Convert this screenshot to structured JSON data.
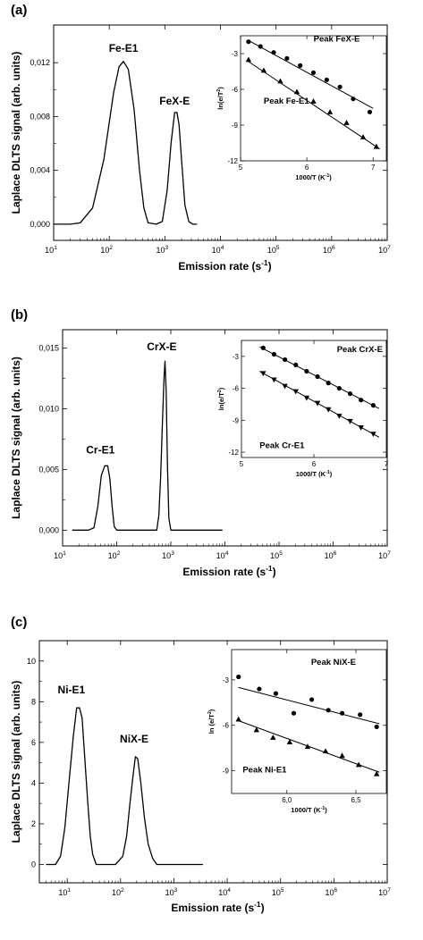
{
  "chart_data": [
    {
      "type": "line",
      "panel_label": "(a)",
      "xlabel": "Emission rate (s⁻¹)",
      "ylabel": "Laplace DLTS signal (arb. units)",
      "x_scale": "log",
      "xlim": [
        10,
        10000000
      ],
      "ylim": [
        -0.0012,
        0.0148
      ],
      "x_ticks": [
        10,
        100,
        1000,
        10000,
        100000,
        1000000,
        10000000
      ],
      "y_ticks": [
        0.0,
        0.004,
        0.008,
        0.012
      ],
      "y_tick_labels": [
        "0,000",
        "0,004",
        "0,008",
        "0,012"
      ],
      "series": [
        {
          "x": [
            10,
            20,
            30,
            50,
            80,
            120,
            150,
            180,
            220,
            280,
            350,
            420,
            500,
            700,
            900,
            1100,
            1300,
            1500,
            1650,
            1800,
            2000,
            2300,
            2700,
            3200,
            3800
          ],
          "y": [
            0,
            0,
            0.0001,
            0.0012,
            0.0048,
            0.0098,
            0.0117,
            0.0121,
            0.0115,
            0.0085,
            0.004,
            0.0012,
            0.0001,
            0,
            0.0002,
            0.0025,
            0.0061,
            0.0083,
            0.0083,
            0.0074,
            0.0048,
            0.0014,
            0.0002,
            0,
            0
          ]
        }
      ],
      "peak_labels": [
        {
          "text": "Fe-E1",
          "x": 180,
          "y": 0.0128
        },
        {
          "text": "FeX-E",
          "x": 1500,
          "y": 0.0089
        }
      ],
      "inset": {
        "xlabel": "1000/T (K⁻¹)",
        "ylabel": "ln(e/T²)",
        "xlim": [
          5,
          7.2
        ],
        "ylim": [
          -12,
          -1.5
        ],
        "x_ticks": [
          5,
          6,
          7
        ],
        "y_ticks": [
          -3,
          -6,
          -9,
          -12
        ],
        "series": [
          {
            "name": "Peak FeX-E",
            "marker": "circle",
            "x": [
              5.12,
              5.3,
              5.5,
              5.7,
              5.9,
              6.1,
              6.3,
              6.5,
              6.7,
              6.95
            ],
            "y": [
              -2.0,
              -2.4,
              -2.9,
              -3.4,
              -4.0,
              -4.6,
              -5.2,
              -5.8,
              -6.8,
              -7.9
            ],
            "fit": [
              [
                5.12,
                -1.9
              ],
              [
                7.0,
                -7.6
              ]
            ]
          },
          {
            "name": "Peak Fe-E1",
            "marker": "triangle",
            "x": [
              5.12,
              5.35,
              5.6,
              5.85,
              6.1,
              6.35,
              6.6,
              6.85,
              7.05
            ],
            "y": [
              -3.5,
              -4.4,
              -5.3,
              -6.2,
              -7.0,
              -7.9,
              -8.8,
              -10.0,
              -10.8
            ],
            "fit": [
              [
                5.1,
                -3.6
              ],
              [
                7.1,
                -11.0
              ]
            ]
          }
        ],
        "labels": [
          {
            "text": "Peak FeX-E",
            "x": 6.8,
            "y": -2.0
          },
          {
            "text": "Peak Fe-E1",
            "x": 5.35,
            "y": -7.2
          }
        ]
      }
    },
    {
      "type": "line",
      "panel_label": "(b)",
      "xlabel": "Emission rate (s⁻¹)",
      "ylabel": "Laplace DLTS signal (arb. units)",
      "x_scale": "log",
      "xlim": [
        10,
        10000000
      ],
      "ylim": [
        -0.0013,
        0.0165
      ],
      "x_ticks": [
        10,
        100,
        1000,
        10000,
        100000,
        1000000,
        10000000
      ],
      "y_ticks": [
        0.0,
        0.005,
        0.01,
        0.015
      ],
      "y_tick_labels": [
        "0,000",
        "0,005",
        "0,010",
        "0,015"
      ],
      "series": [
        {
          "x": [
            15,
            30,
            38,
            45,
            52,
            60,
            68,
            75,
            82,
            90,
            100,
            200,
            400,
            550,
            600,
            650,
            700,
            750,
            780,
            820,
            870,
            920,
            1000,
            3000,
            9000
          ],
          "y": [
            0,
            0,
            0.0002,
            0.002,
            0.0045,
            0.0053,
            0.0053,
            0.0042,
            0.002,
            0.0003,
            0,
            0,
            0,
            0,
            0.0012,
            0.0045,
            0.0088,
            0.0125,
            0.0139,
            0.0115,
            0.0052,
            0.001,
            0,
            0,
            0
          ]
        }
      ],
      "peak_labels": [
        {
          "text": "Cr-E1",
          "x": 50,
          "y": 0.0063
        },
        {
          "text": "CrX-E",
          "x": 680,
          "y": 0.0148
        }
      ],
      "inset": {
        "xlabel": "1000/T (K⁻¹)",
        "ylabel": "ln(e/T²)",
        "xlim": [
          5,
          7
        ],
        "ylim": [
          -12.5,
          -1.5
        ],
        "x_ticks": [
          5,
          6,
          7
        ],
        "y_ticks": [
          -3,
          -6,
          -9,
          -12
        ],
        "series": [
          {
            "name": "Peak CrX-E",
            "marker": "circle",
            "x": [
              5.3,
              5.45,
              5.6,
              5.75,
              5.9,
              6.05,
              6.2,
              6.35,
              6.5,
              6.65,
              6.82
            ],
            "y": [
              -2.2,
              -2.8,
              -3.3,
              -3.8,
              -4.4,
              -4.9,
              -5.5,
              -6.0,
              -6.5,
              -7.1,
              -7.6
            ],
            "fit": [
              [
                5.25,
                -2.1
              ],
              [
                6.9,
                -7.9
              ]
            ]
          },
          {
            "name": "Peak Cr-E1",
            "marker": "triangle-down",
            "x": [
              5.3,
              5.45,
              5.6,
              5.75,
              5.9,
              6.05,
              6.2,
              6.35,
              6.5,
              6.65,
              6.82
            ],
            "y": [
              -4.6,
              -5.2,
              -5.8,
              -6.3,
              -6.9,
              -7.4,
              -8.0,
              -8.6,
              -9.1,
              -9.7,
              -10.3
            ],
            "fit": [
              [
                5.25,
                -4.4
              ],
              [
                6.9,
                -10.6
              ]
            ]
          }
        ],
        "labels": [
          {
            "text": "Peak CrX-E",
            "x": 6.95,
            "y": -2.6
          },
          {
            "text": "Peak Cr-E1",
            "x": 5.25,
            "y": -11.6
          }
        ]
      }
    },
    {
      "type": "line",
      "panel_label": "(c)",
      "xlabel": "Emission rate (s⁻¹)",
      "ylabel": "Laplace DLTS signal (arb. units)",
      "x_scale": "log",
      "xlim": [
        3,
        10000000
      ],
      "ylim": [
        -0.9,
        11
      ],
      "x_ticks": [
        10,
        100,
        1000,
        10000,
        100000,
        1000000,
        10000000
      ],
      "y_ticks": [
        0,
        2,
        4,
        6,
        8,
        10
      ],
      "y_tick_labels": [
        "0",
        "2",
        "4",
        "6",
        "8",
        "10"
      ],
      "series": [
        {
          "x": [
            4,
            6,
            7.5,
            9,
            11,
            13,
            15,
            17,
            19,
            21,
            24,
            27,
            30,
            35,
            45,
            80,
            110,
            130,
            150,
            170,
            190,
            210,
            240,
            280,
            330,
            400,
            480,
            600,
            3500
          ],
          "y": [
            0,
            0,
            0.4,
            1.8,
            4.3,
            6.3,
            7.7,
            7.7,
            7.2,
            5.5,
            3.2,
            1.4,
            0.5,
            0,
            0,
            0,
            0.4,
            1.4,
            3.0,
            4.3,
            5.3,
            5.2,
            4.0,
            2.3,
            1.0,
            0.3,
            0,
            0,
            0
          ]
        }
      ],
      "peak_labels": [
        {
          "text": "Ni-E1",
          "x": 12,
          "y": 8.4
        },
        {
          "text": "NiX-E",
          "x": 180,
          "y": 6.0
        }
      ],
      "inset": {
        "xlabel": "1000/T (K⁻¹)",
        "ylabel": "ln (e/T²)",
        "xlim": [
          5.6,
          6.72
        ],
        "ylim": [
          -10.5,
          -1
        ],
        "x_ticks": [
          6.0,
          6.5
        ],
        "x_tick_labels": [
          "6,0",
          "6,5"
        ],
        "y_ticks": [
          -3,
          -6,
          -9
        ],
        "series": [
          {
            "name": "Peak NiX-E",
            "marker": "circle",
            "x": [
              5.65,
              5.8,
              5.92,
              6.05,
              6.18,
              6.3,
              6.4,
              6.53,
              6.65
            ],
            "y": [
              -2.8,
              -3.6,
              -3.9,
              -5.2,
              -4.3,
              -5.0,
              -5.2,
              -5.3,
              -6.1
            ],
            "fit": [
              [
                5.65,
                -3.5
              ],
              [
                6.67,
                -5.9
              ]
            ]
          },
          {
            "name": "Peak Ni-E1",
            "marker": "triangle",
            "x": [
              5.65,
              5.78,
              5.9,
              6.02,
              6.15,
              6.28,
              6.4,
              6.52,
              6.65
            ],
            "y": [
              -5.6,
              -6.3,
              -6.8,
              -7.1,
              -7.4,
              -7.7,
              -8.0,
              -8.6,
              -9.2
            ],
            "fit": [
              [
                5.65,
                -5.7
              ],
              [
                6.67,
                -9.1
              ]
            ]
          }
        ],
        "labels": [
          {
            "text": "Peak NiX-E",
            "x": 6.5,
            "y": -2.0
          },
          {
            "text": "Peak Ni-E1",
            "x": 5.68,
            "y": -9.1
          }
        ]
      }
    }
  ]
}
